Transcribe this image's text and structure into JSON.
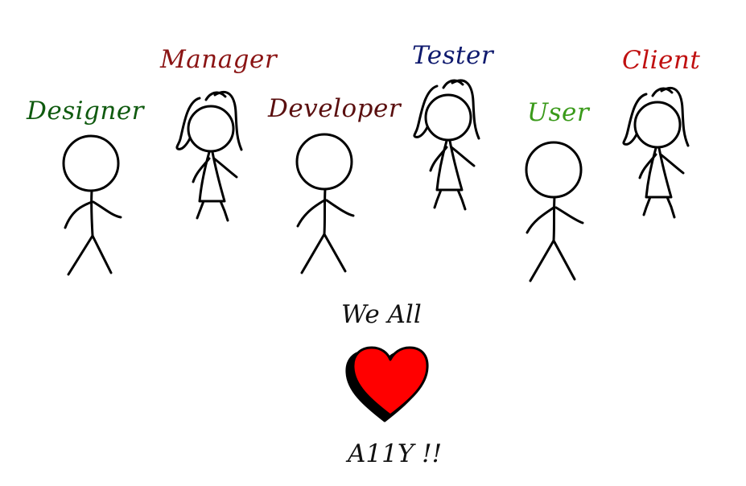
{
  "roles": [
    {
      "label": "Designer",
      "color": "#0f5a0f",
      "figure": "male"
    },
    {
      "label": "Manager",
      "color": "#8b1414",
      "figure": "female"
    },
    {
      "label": "Developer",
      "color": "#5a0f0f",
      "figure": "male"
    },
    {
      "label": "Tester",
      "color": "#0f1a6e",
      "figure": "female"
    },
    {
      "label": "User",
      "color": "#3a9a1a",
      "figure": "male"
    },
    {
      "label": "Client",
      "color": "#c01010",
      "figure": "female"
    }
  ],
  "caption_top": "We All",
  "caption_bottom": "A11Y !!",
  "heart": {
    "color": "#ff0000",
    "shadow": "#000000",
    "icon": "heart-icon"
  }
}
